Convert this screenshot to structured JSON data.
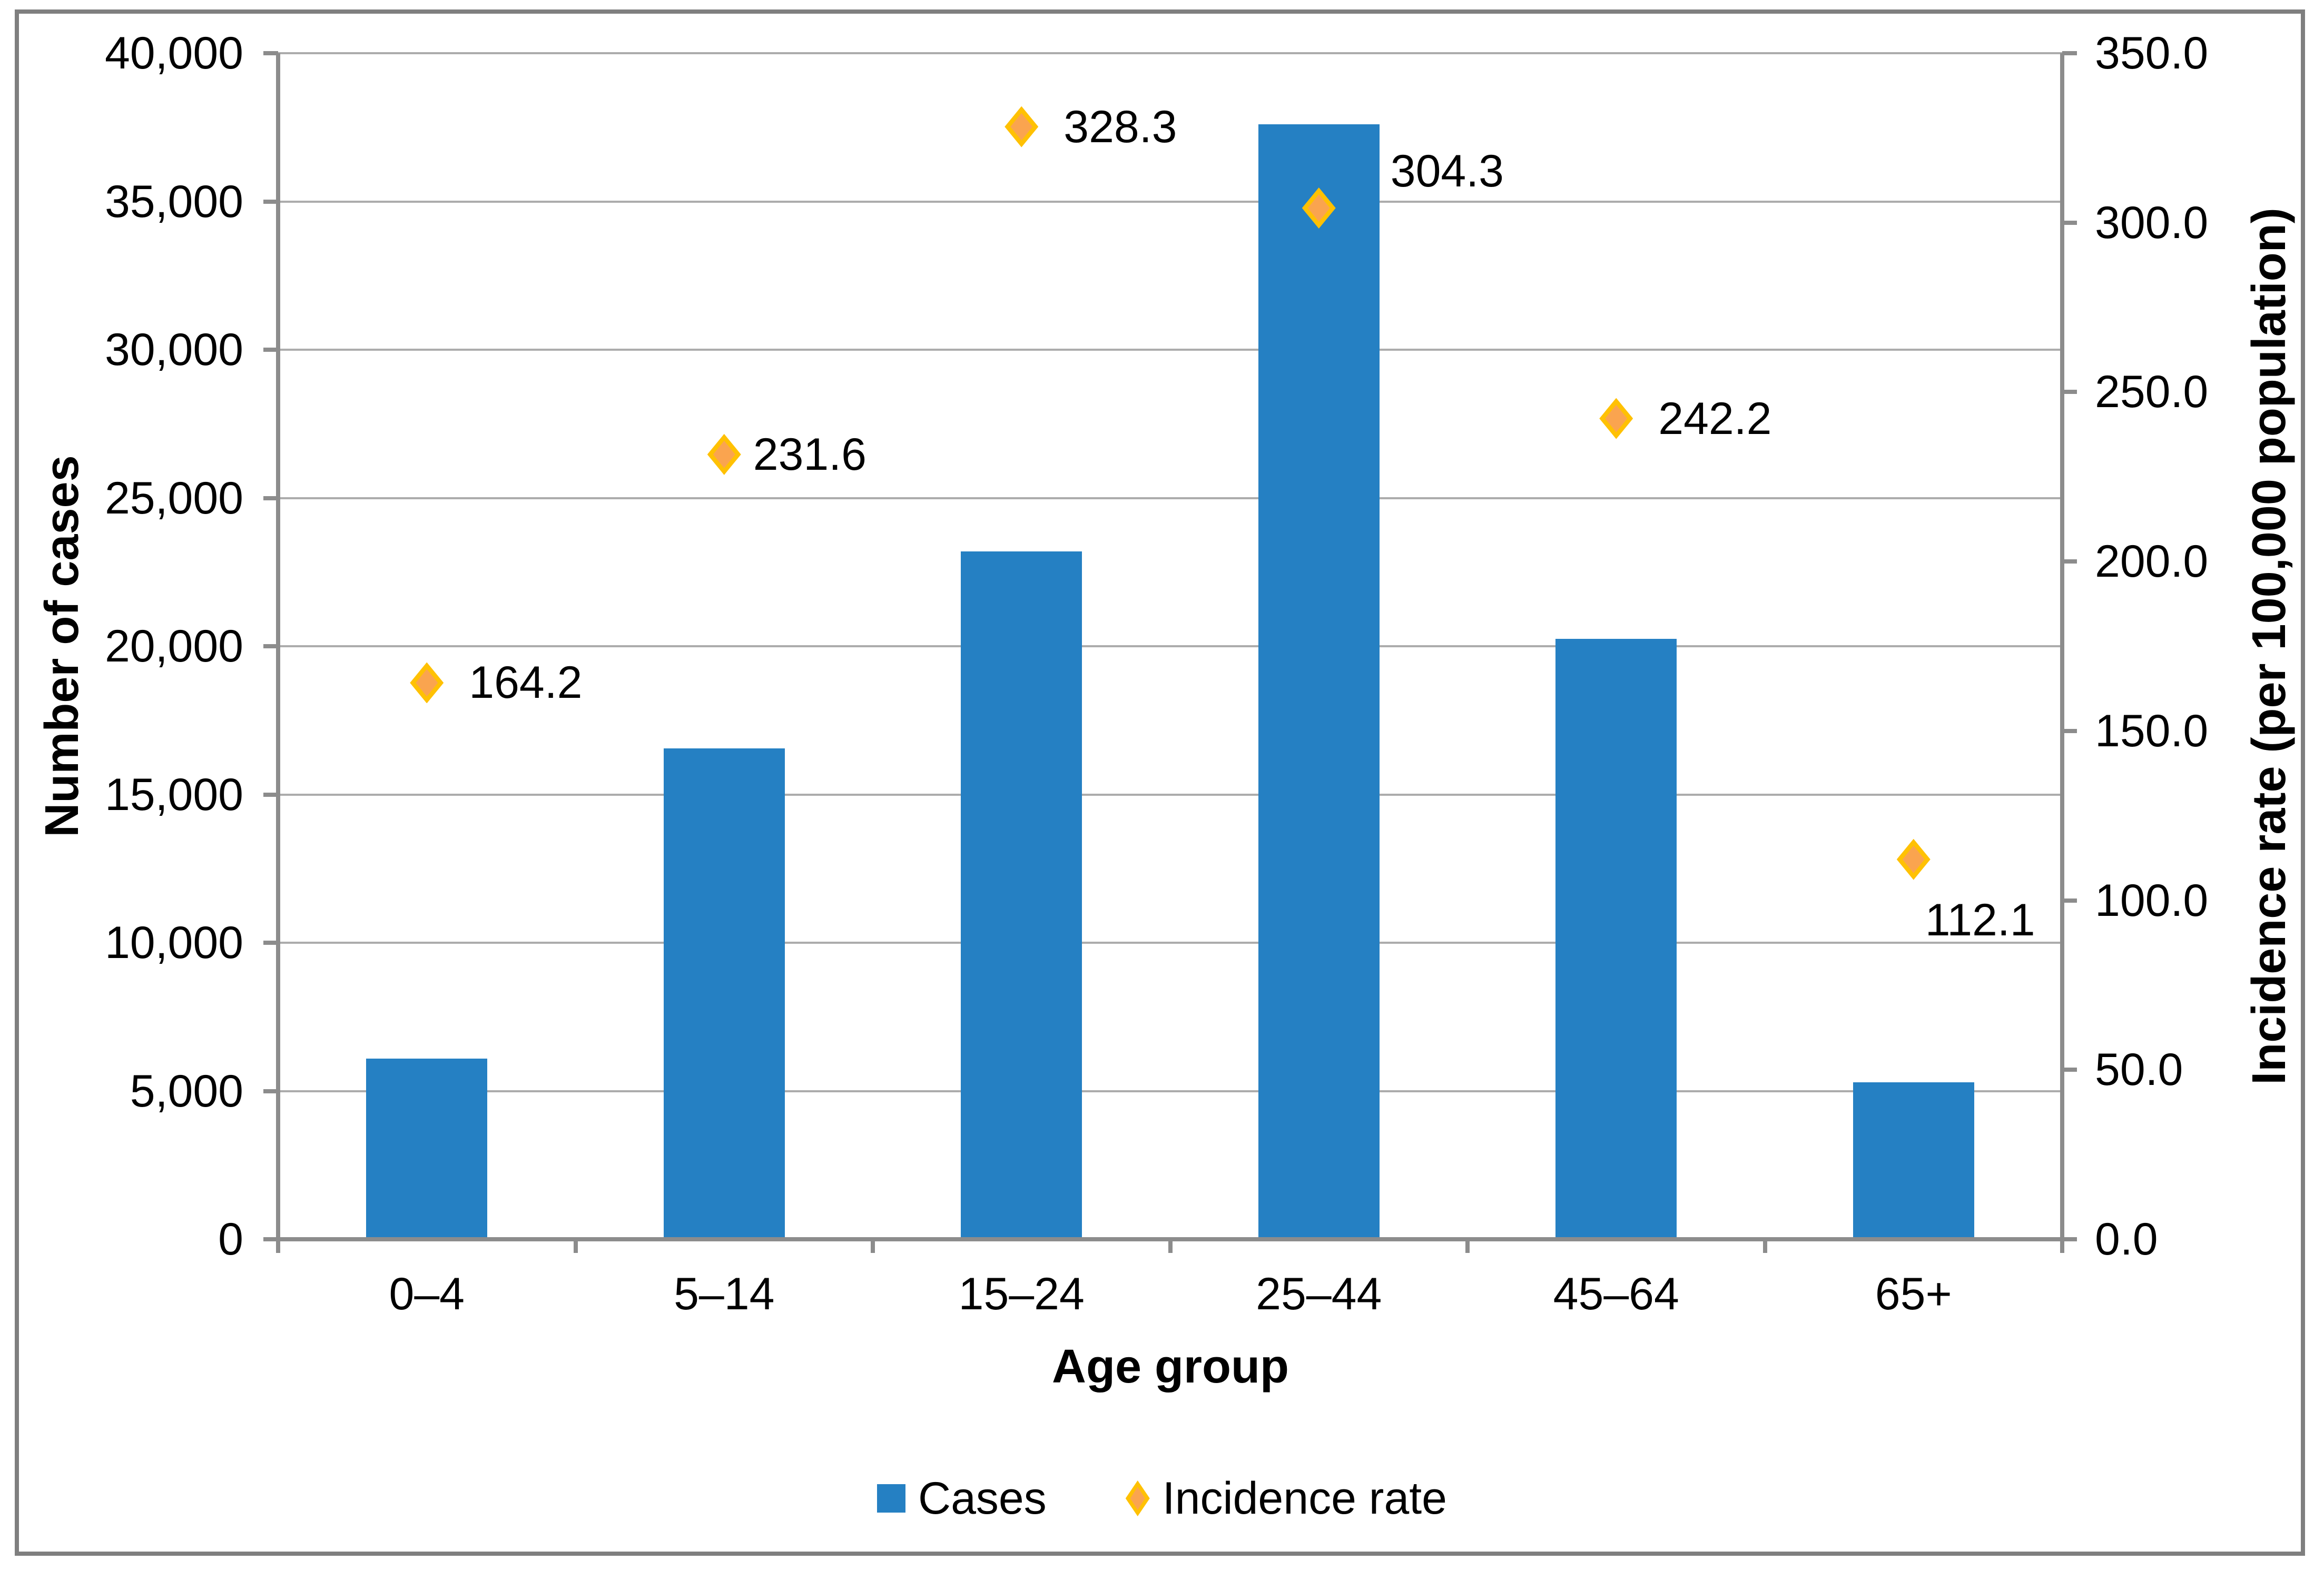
{
  "chart_data": {
    "type": "combo-bar-scatter",
    "categories": [
      "0–4",
      "5–14",
      "15–24",
      "25–44",
      "45–64",
      "65+"
    ],
    "series": [
      {
        "name": "Cases",
        "type": "bar",
        "axis": "left",
        "values": [
          6100,
          16550,
          23200,
          37600,
          20250,
          5300
        ]
      },
      {
        "name": "Incidence rate",
        "type": "scatter",
        "marker": "diamond",
        "axis": "right",
        "values": [
          164.2,
          231.6,
          328.3,
          304.3,
          242.2,
          112.1
        ],
        "point_labels": [
          "164.2",
          "231.6",
          "328.3",
          "304.3",
          "242.2",
          "112.1"
        ],
        "label_offsets": [
          {
            "dx": 80,
            "dy": 0
          },
          {
            "dx": 55,
            "dy": 0
          },
          {
            "dx": 80,
            "dy": 0
          },
          {
            "dx": 136,
            "dy": -70
          },
          {
            "dx": 80,
            "dy": 0
          },
          {
            "dx": 22,
            "dy": 115
          }
        ]
      }
    ],
    "xlabel": "Age group",
    "ylabel_left": "Number of cases",
    "ylabel_right": "Incidence rate (per 100,000 population)",
    "y_left": {
      "min": 0,
      "max": 40000,
      "step": 5000,
      "tick_labels": [
        "0",
        "5,000",
        "10,000",
        "15,000",
        "20,000",
        "25,000",
        "30,000",
        "35,000",
        "40,000"
      ]
    },
    "y_right": {
      "min": 0,
      "max": 350,
      "step": 50,
      "tick_labels": [
        "0.0",
        "50.0",
        "100.0",
        "150.0",
        "200.0",
        "250.0",
        "300.0",
        "350.0"
      ]
    },
    "grid": true,
    "legend_position": "bottom"
  },
  "colors": {
    "bar": "#2580c3",
    "marker_fill": "#faa44f",
    "marker_border": "#ffc103",
    "gridline": "#acacac",
    "axis": "#8c8c8c",
    "border": "#7f7f7f",
    "text": "#000000"
  },
  "legend": {
    "cases_label": "Cases",
    "incidence_label": "Incidence rate"
  }
}
